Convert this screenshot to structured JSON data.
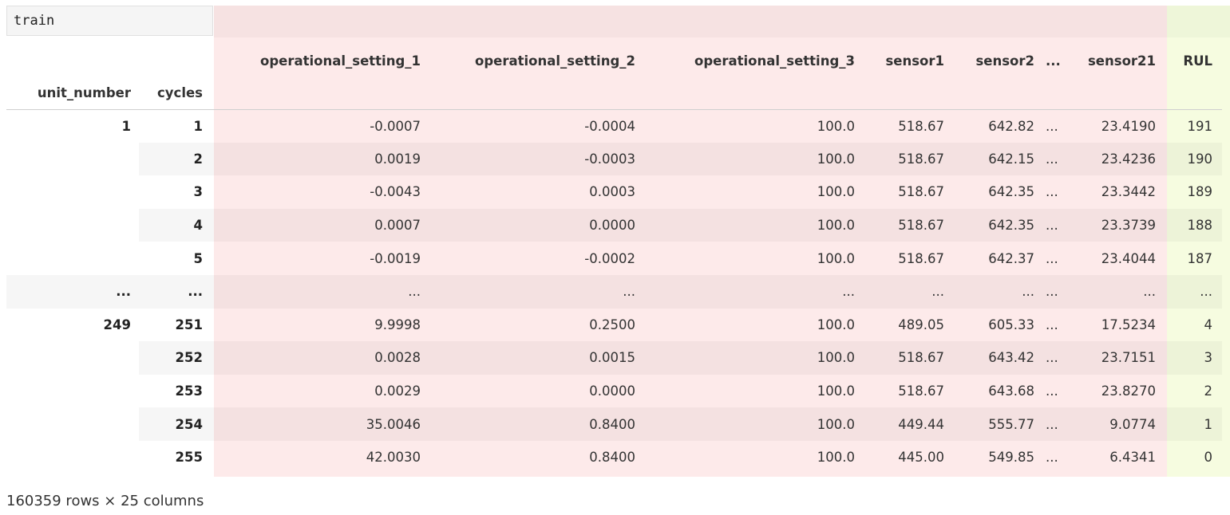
{
  "cell_input": "train",
  "header": {
    "index_names": [
      "unit_number",
      "cycles"
    ],
    "columns": [
      "operational_setting_1",
      "operational_setting_2",
      "operational_setting_3",
      "sensor1",
      "sensor2",
      "...",
      "sensor21",
      "RUL"
    ]
  },
  "rows": [
    {
      "unit": "1",
      "cycle": "1",
      "vals": [
        "-0.0007",
        "-0.0004",
        "100.0",
        "518.67",
        "642.82",
        "...",
        "23.4190",
        "191"
      ]
    },
    {
      "unit": "",
      "cycle": "2",
      "vals": [
        "0.0019",
        "-0.0003",
        "100.0",
        "518.67",
        "642.15",
        "...",
        "23.4236",
        "190"
      ]
    },
    {
      "unit": "",
      "cycle": "3",
      "vals": [
        "-0.0043",
        "0.0003",
        "100.0",
        "518.67",
        "642.35",
        "...",
        "23.3442",
        "189"
      ]
    },
    {
      "unit": "",
      "cycle": "4",
      "vals": [
        "0.0007",
        "0.0000",
        "100.0",
        "518.67",
        "642.35",
        "...",
        "23.3739",
        "188"
      ]
    },
    {
      "unit": "",
      "cycle": "5",
      "vals": [
        "-0.0019",
        "-0.0002",
        "100.0",
        "518.67",
        "642.37",
        "...",
        "23.4044",
        "187"
      ]
    },
    {
      "unit": "...",
      "cycle": "...",
      "vals": [
        "...",
        "...",
        "...",
        "...",
        "...",
        "...",
        "...",
        "..."
      ]
    },
    {
      "unit": "249",
      "cycle": "251",
      "vals": [
        "9.9998",
        "0.2500",
        "100.0",
        "489.05",
        "605.33",
        "...",
        "17.5234",
        "4"
      ]
    },
    {
      "unit": "",
      "cycle": "252",
      "vals": [
        "0.0028",
        "0.0015",
        "100.0",
        "518.67",
        "643.42",
        "...",
        "23.7151",
        "3"
      ]
    },
    {
      "unit": "",
      "cycle": "253",
      "vals": [
        "0.0029",
        "0.0000",
        "100.0",
        "518.67",
        "643.68",
        "...",
        "23.8270",
        "2"
      ]
    },
    {
      "unit": "",
      "cycle": "254",
      "vals": [
        "35.0046",
        "0.8400",
        "100.0",
        "449.44",
        "555.77",
        "...",
        "9.0774",
        "1"
      ]
    },
    {
      "unit": "",
      "cycle": "255",
      "vals": [
        "42.0030",
        "0.8400",
        "100.0",
        "445.00",
        "549.85",
        "...",
        "6.4341",
        "0"
      ]
    }
  ],
  "footer": "160359 rows × 25 columns",
  "colors": {
    "highlight_red": "#fdeaea",
    "highlight_rul": "#f6fce0"
  }
}
